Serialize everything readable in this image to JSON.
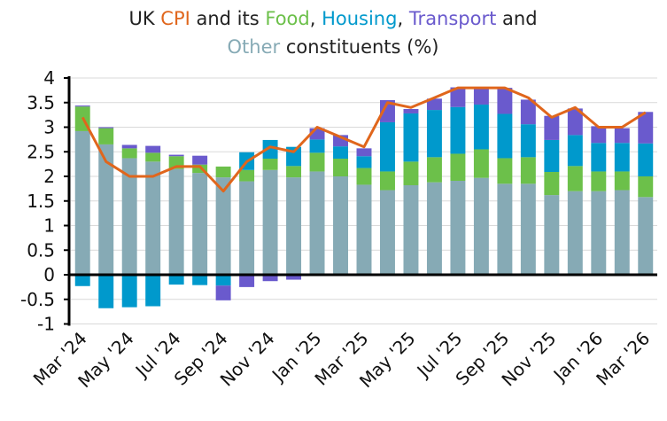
{
  "chart_data": {
    "type": "bar",
    "stacked": true,
    "title": {
      "parts": [
        {
          "text": "UK ",
          "color": "#222222"
        },
        {
          "text": "CPI",
          "color": "#e0661c"
        },
        {
          "text": " and its ",
          "color": "#222222"
        },
        {
          "text": "Food",
          "color": "#6cc04a"
        },
        {
          "text": ", ",
          "color": "#222222"
        },
        {
          "text": "Housing",
          "color": "#0099cc"
        },
        {
          "text": ", ",
          "color": "#222222"
        },
        {
          "text": "Transport",
          "color": "#6a5acd"
        },
        {
          "text": " and",
          "color": "#222222"
        }
      ],
      "line2": [
        {
          "text": "Other",
          "color": "#86aab5"
        },
        {
          "text": " constituents (%)",
          "color": "#222222"
        }
      ]
    },
    "categories": [
      "Mar '24",
      "Apr '24",
      "May '24",
      "Jun '24",
      "Jul '24",
      "Aug '24",
      "Sep '24",
      "Oct '24",
      "Nov '24",
      "Dec '24",
      "Jan '25",
      "Feb '25",
      "Mar '25",
      "Apr '25",
      "May '25",
      "Jun '25",
      "Jul '25",
      "Aug '25",
      "Sep '25",
      "Oct '25",
      "Nov '25",
      "Dec '25",
      "Jan '26",
      "Feb '26",
      "Mar '26"
    ],
    "x_tick_labels": [
      "Mar '24",
      "May '24",
      "Jul '24",
      "Sep '24",
      "Nov '24",
      "Jan '25",
      "Mar '25",
      "May '25",
      "Jul '25",
      "Sep '25",
      "Nov '25",
      "Jan '26",
      "Mar '26"
    ],
    "ylim": [
      -1,
      4
    ],
    "y_ticks": [
      "-1",
      "-0.5",
      "0",
      "0.5",
      "1",
      "1.5",
      "2",
      "2.5",
      "3",
      "3.5",
      "4"
    ],
    "grid": true,
    "series": [
      {
        "name": "Other",
        "color": "#86aab5",
        "values": [
          2.92,
          2.65,
          2.37,
          2.3,
          2.15,
          2.07,
          1.98,
          1.9,
          2.13,
          1.98,
          2.1,
          2.0,
          1.83,
          1.72,
          1.82,
          1.88,
          1.91,
          1.97,
          1.85,
          1.85,
          1.62,
          1.7,
          1.7,
          1.72,
          1.58
        ]
      },
      {
        "name": "Food",
        "color": "#6cc04a",
        "values": [
          0.5,
          0.33,
          0.2,
          0.18,
          0.26,
          0.17,
          0.22,
          0.23,
          0.23,
          0.23,
          0.38,
          0.36,
          0.34,
          0.38,
          0.48,
          0.51,
          0.55,
          0.58,
          0.52,
          0.54,
          0.47,
          0.51,
          0.4,
          0.38,
          0.42
        ]
      },
      {
        "name": "Housing",
        "color": "#0099cc",
        "values": [
          -0.23,
          -0.68,
          -0.66,
          -0.64,
          -0.2,
          -0.21,
          -0.22,
          0.36,
          0.38,
          0.39,
          0.27,
          0.25,
          0.24,
          1.0,
          0.98,
          0.96,
          0.95,
          0.91,
          0.9,
          0.67,
          0.65,
          0.63,
          0.58,
          0.58,
          0.67
        ]
      },
      {
        "name": "Transport",
        "color": "#6a5acd",
        "values": [
          0.02,
          0.02,
          0.07,
          0.14,
          0.03,
          0.18,
          -0.3,
          -0.25,
          -0.13,
          -0.1,
          0.23,
          0.23,
          0.16,
          0.45,
          0.09,
          0.23,
          0.4,
          0.36,
          0.53,
          0.5,
          0.49,
          0.54,
          0.34,
          0.3,
          0.64
        ]
      }
    ],
    "line": {
      "name": "CPI",
      "color": "#e0661c",
      "values": [
        3.2,
        2.3,
        2.0,
        2.0,
        2.2,
        2.2,
        1.7,
        2.3,
        2.6,
        2.5,
        3.0,
        2.8,
        2.6,
        3.5,
        3.4,
        3.6,
        3.8,
        3.8,
        3.8,
        3.6,
        3.2,
        3.4,
        3.0,
        3.0,
        3.3
      ]
    }
  }
}
